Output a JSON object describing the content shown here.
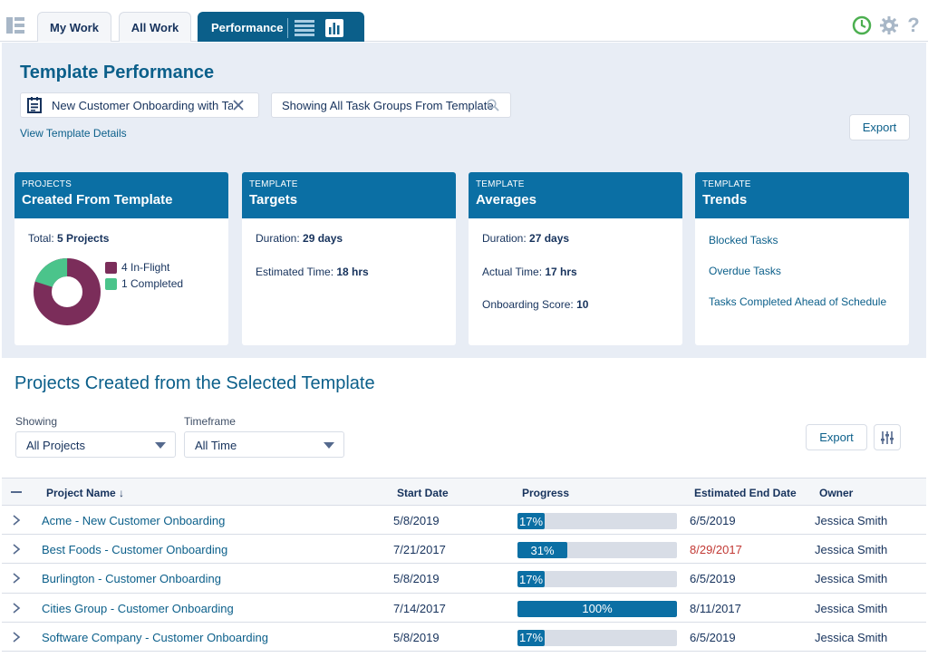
{
  "tabs": [
    {
      "label": "My Work"
    },
    {
      "label": "All Work"
    },
    {
      "label": "Performance"
    }
  ],
  "header": {
    "title": "Template Performance",
    "template_lookup": "New Customer Onboarding with Tas",
    "filter_text": "Showing All Task Groups From Template",
    "view_details": "View Template Details",
    "export_label": "Export"
  },
  "cards": {
    "projects": {
      "kicker": "PROJECTS",
      "title": "Created From Template",
      "total_label": "Total:",
      "total_value": "5 Projects",
      "legend": [
        {
          "label": "4 In-Flight",
          "color": "#7b2d5a",
          "count": 4
        },
        {
          "label": "1 Completed",
          "color": "#4bc48b",
          "count": 1
        }
      ]
    },
    "targets": {
      "kicker": "TEMPLATE",
      "title": "Targets",
      "duration_label": "Duration:",
      "duration_value": "29 days",
      "time_label": "Estimated Time:",
      "time_value": "18 hrs"
    },
    "averages": {
      "kicker": "TEMPLATE",
      "title": "Averages",
      "duration_label": "Duration:",
      "duration_value": "27 days",
      "time_label": "Actual Time:",
      "time_value": "17 hrs",
      "score_label": "Onboarding Score:",
      "score_value": "10"
    },
    "trends": {
      "kicker": "TEMPLATE",
      "title": "Trends",
      "links": [
        "Blocked Tasks",
        "Overdue Tasks",
        "Tasks Completed Ahead of Schedule"
      ]
    }
  },
  "projects_section": {
    "title": "Projects Created from the Selected Template",
    "showing_label": "Showing",
    "showing_value": "All Projects",
    "timeframe_label": "Timeframe",
    "timeframe_value": "All Time",
    "export_label": "Export"
  },
  "table": {
    "columns": [
      "Project Name ↓",
      "Start Date",
      "Progress",
      "Estimated End Date",
      "Owner"
    ],
    "rows": [
      {
        "name": "Acme - New Customer Onboarding",
        "start": "5/8/2019",
        "progress": 17,
        "progress_label": "17%",
        "end": "6/5/2019",
        "end_late": false,
        "owner": "Jessica Smith"
      },
      {
        "name": "Best Foods - Customer Onboarding",
        "start": "7/21/2017",
        "progress": 31,
        "progress_label": "31%",
        "end": "8/29/2017",
        "end_late": true,
        "owner": "Jessica Smith"
      },
      {
        "name": "Burlington - Customer Onboarding",
        "start": "5/8/2019",
        "progress": 17,
        "progress_label": "17%",
        "end": "6/5/2019",
        "end_late": false,
        "owner": "Jessica Smith"
      },
      {
        "name": "Cities Group - Customer Onboarding",
        "start": "7/14/2017",
        "progress": 100,
        "progress_label": "100%",
        "end": "8/11/2017",
        "end_late": false,
        "owner": "Jessica Smith"
      },
      {
        "name": "Software Company - Customer Onboarding",
        "start": "5/8/2019",
        "progress": 17,
        "progress_label": "17%",
        "end": "6/5/2019",
        "end_late": false,
        "owner": "Jessica Smith"
      }
    ]
  },
  "colors": {
    "brand": "#0b5f8a",
    "card_header": "#0b6fa4",
    "late": "#c23934",
    "clock": "#4caf50"
  },
  "icons": [
    "app-launcher-icon",
    "template-icon",
    "close-icon",
    "search-icon",
    "list-view-icon",
    "chart-view-icon",
    "clock-icon",
    "gear-icon",
    "help-icon",
    "chevron-down-icon",
    "chevron-right-icon",
    "column-settings-icon",
    "collapse-all-icon"
  ]
}
